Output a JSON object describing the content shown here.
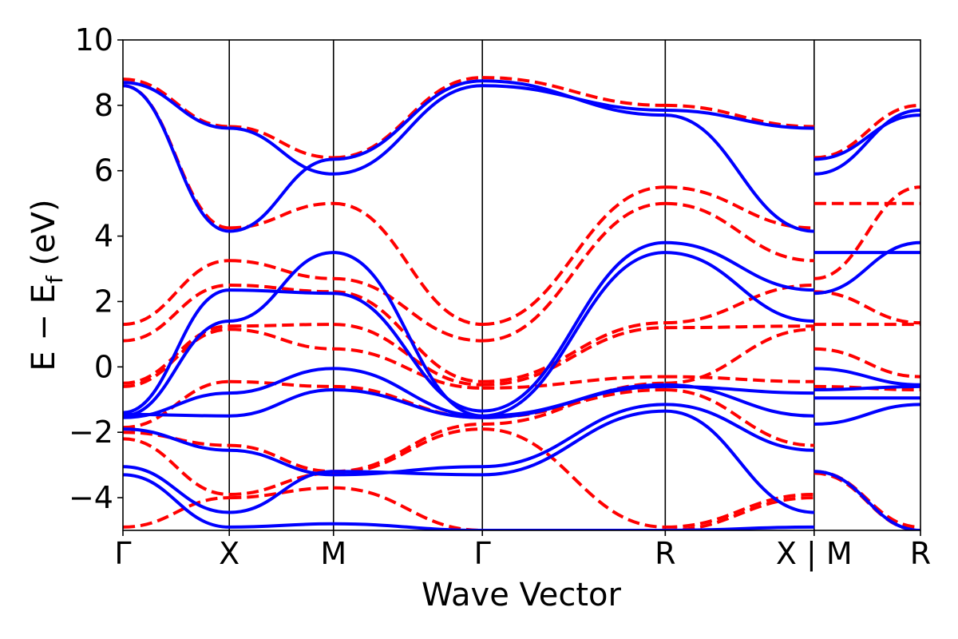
{
  "chart_data": {
    "type": "line",
    "xlabel": "Wave Vector",
    "ylabel_main": "E − E",
    "ylabel_sub": "f",
    "ylabel_tail": " (eV)",
    "ylim": [
      -5,
      10
    ],
    "yticks": [
      -4,
      -2,
      0,
      2,
      4,
      6,
      8,
      10
    ],
    "ytick_labels": [
      "−4",
      "−2",
      "0",
      "2",
      "4",
      "6",
      "8",
      "10"
    ],
    "kpoints": [
      {
        "label": "Γ",
        "x": 0.0
      },
      {
        "label": "X",
        "x": 1.0
      },
      {
        "label": "M",
        "x": 1.98
      },
      {
        "label": "Γ",
        "x": 3.38
      },
      {
        "label": "R",
        "x": 5.1
      },
      {
        "label": "X | M",
        "x": 6.5
      },
      {
        "label": "R",
        "x": 7.5
      }
    ],
    "x_range": [
      0,
      7.5
    ],
    "series": [
      {
        "name": "dft_dashed",
        "color": "#ff0000",
        "style": "dashed",
        "segments": [
          {
            "x0": 0.0,
            "x1": 1.0,
            "bands": [
              [
                8.8,
                7.35
              ],
              [
                8.6,
                4.25
              ],
              [
                1.3,
                3.25
              ],
              [
                0.8,
                2.5
              ],
              [
                -0.5,
                1.25
              ],
              [
                -0.6,
                1.15
              ],
              [
                -1.85,
                -0.45
              ],
              [
                -2.0,
                -2.4
              ],
              [
                -2.2,
                -3.9
              ],
              [
                -4.9,
                -4.0
              ]
            ]
          },
          {
            "x0": 1.0,
            "x1": 1.98,
            "bands": [
              [
                7.35,
                6.4
              ],
              [
                4.25,
                5.0
              ],
              [
                3.25,
                2.7
              ],
              [
                2.5,
                2.3
              ],
              [
                1.25,
                1.3
              ],
              [
                1.15,
                0.55
              ],
              [
                -0.45,
                -0.6
              ],
              [
                -2.4,
                -3.2
              ],
              [
                -3.9,
                -3.25
              ],
              [
                -4.0,
                -3.7
              ]
            ]
          },
          {
            "x0": 1.98,
            "x1": 3.38,
            "bands": [
              [
                6.4,
                8.85
              ],
              [
                5.0,
                1.3
              ],
              [
                2.7,
                0.8
              ],
              [
                2.3,
                -0.45
              ],
              [
                1.3,
                -0.55
              ],
              [
                0.55,
                -0.65
              ],
              [
                -0.6,
                -1.55
              ],
              [
                -3.2,
                -1.75
              ],
              [
                -3.25,
                -1.9
              ],
              [
                -3.7,
                -5.0
              ]
            ]
          },
          {
            "x0": 3.38,
            "x1": 5.1,
            "bands": [
              [
                8.85,
                8.0
              ],
              [
                1.3,
                5.5
              ],
              [
                0.8,
                5.0
              ],
              [
                -0.45,
                1.35
              ],
              [
                -0.55,
                1.2
              ],
              [
                -0.65,
                -0.3
              ],
              [
                -1.55,
                -0.7
              ],
              [
                -1.75,
                -0.5
              ],
              [
                -1.9,
                -4.9
              ],
              [
                -5.0,
                -5.0
              ]
            ]
          },
          {
            "x0": 5.1,
            "x1": 6.5,
            "bands": [
              [
                8.0,
                7.35
              ],
              [
                5.5,
                4.25
              ],
              [
                5.0,
                3.25
              ],
              [
                1.35,
                2.5
              ],
              [
                1.2,
                1.25
              ],
              [
                -0.3,
                -0.45
              ],
              [
                -0.7,
                -2.4
              ],
              [
                -0.5,
                1.15
              ],
              [
                -4.9,
                -3.9
              ],
              [
                -5.0,
                -4.0
              ]
            ]
          },
          {
            "x0": 6.5,
            "x1": 7.5,
            "bands": [
              [
                6.4,
                8.0
              ],
              [
                5.0,
                5.0
              ],
              [
                2.7,
                5.5
              ],
              [
                2.3,
                1.35
              ],
              [
                1.3,
                1.3
              ],
              [
                0.55,
                -0.3
              ],
              [
                -0.6,
                -0.7
              ],
              [
                -3.2,
                -4.9
              ],
              [
                -3.25,
                -5.0
              ]
            ]
          }
        ]
      },
      {
        "name": "model_solid",
        "color": "#0000ff",
        "style": "solid",
        "segments": [
          {
            "x0": 0.0,
            "x1": 1.0,
            "bands": [
              [
                8.7,
                7.3
              ],
              [
                8.6,
                4.15
              ],
              [
                -1.4,
                2.35
              ],
              [
                -1.5,
                1.4
              ],
              [
                -1.55,
                -0.8
              ],
              [
                -1.45,
                -1.5
              ],
              [
                -1.9,
                -2.55
              ],
              [
                -3.05,
                -4.45
              ],
              [
                -3.3,
                -4.9
              ]
            ]
          },
          {
            "x0": 1.0,
            "x1": 1.98,
            "bands": [
              [
                7.3,
                5.9
              ],
              [
                4.15,
                6.35
              ],
              [
                2.35,
                2.25
              ],
              [
                1.4,
                3.5
              ],
              [
                -0.8,
                -0.05
              ],
              [
                -1.5,
                -0.7
              ],
              [
                -2.55,
                -3.3
              ],
              [
                -4.45,
                -3.2
              ],
              [
                -4.9,
                -4.8
              ]
            ]
          },
          {
            "x0": 1.98,
            "x1": 3.38,
            "bands": [
              [
                5.9,
                8.6
              ],
              [
                6.35,
                8.75
              ],
              [
                2.25,
                -1.35
              ],
              [
                3.5,
                -1.5
              ],
              [
                -0.05,
                -1.5
              ],
              [
                -0.7,
                -1.55
              ],
              [
                -3.3,
                -3.05
              ],
              [
                -3.2,
                -3.3
              ],
              [
                -4.8,
                -5.0
              ]
            ]
          },
          {
            "x0": 3.38,
            "x1": 5.1,
            "bands": [
              [
                8.6,
                7.85
              ],
              [
                8.75,
                7.7
              ],
              [
                -1.35,
                3.8
              ],
              [
                -1.5,
                3.5
              ],
              [
                -1.5,
                -0.6
              ],
              [
                -1.55,
                -0.55
              ],
              [
                -3.05,
                -1.15
              ],
              [
                -3.3,
                -1.35
              ],
              [
                -5.0,
                -5.0
              ]
            ]
          },
          {
            "x0": 5.1,
            "x1": 6.5,
            "bands": [
              [
                7.85,
                7.3
              ],
              [
                7.7,
                4.15
              ],
              [
                3.8,
                2.35
              ],
              [
                3.5,
                1.4
              ],
              [
                -0.6,
                -0.8
              ],
              [
                -0.55,
                -1.5
              ],
              [
                -1.15,
                -2.55
              ],
              [
                -1.35,
                -4.45
              ],
              [
                -5.0,
                -4.9
              ]
            ]
          },
          {
            "x0": 6.5,
            "x1": 7.5,
            "bands": [
              [
                5.9,
                7.85
              ],
              [
                6.35,
                7.7
              ],
              [
                3.5,
                3.5
              ],
              [
                2.25,
                3.8
              ],
              [
                -0.05,
                -0.55
              ],
              [
                -0.7,
                -0.6
              ],
              [
                -1.75,
                -1.15
              ],
              [
                -3.2,
                -5.0
              ],
              [
                -0.95,
                -0.95
              ]
            ]
          }
        ]
      }
    ]
  }
}
